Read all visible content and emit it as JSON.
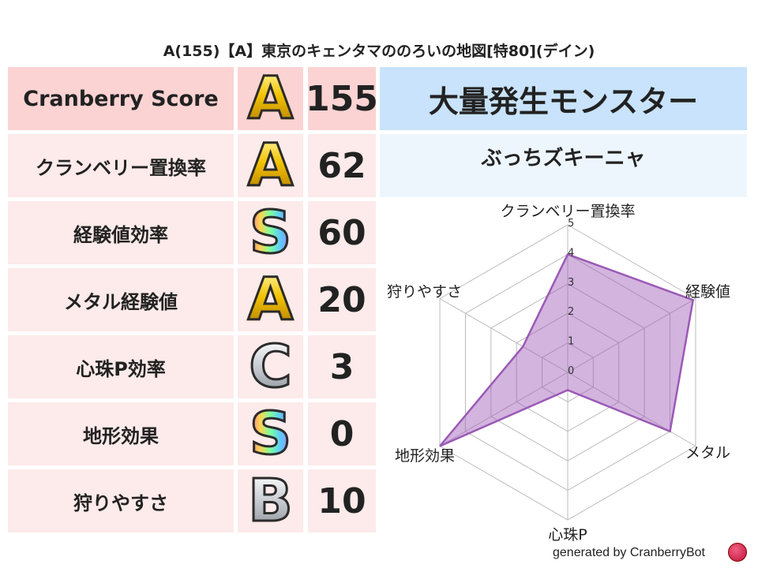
{
  "title": "A(155)【A】東京のキェンタマののろいの地図[特80](デイン)",
  "rows": [
    {
      "label": "Cranberry Score",
      "grade": "A",
      "score": "155"
    },
    {
      "label": "クランベリー置換率",
      "grade": "A",
      "score": "62"
    },
    {
      "label": "経験値効率",
      "grade": "S",
      "score": "60"
    },
    {
      "label": "メタル経験値",
      "grade": "A",
      "score": "20"
    },
    {
      "label": "心珠P効率",
      "grade": "C",
      "score": "3"
    },
    {
      "label": "地形効果",
      "grade": "S",
      "score": "0"
    },
    {
      "label": "狩りやすさ",
      "grade": "B",
      "score": "10"
    }
  ],
  "monster": {
    "header": "大量発生モンスター",
    "name": "ぶっちズキーニャ"
  },
  "chart_data": {
    "type": "radar",
    "axes": [
      "クランベリー置換率",
      "経験値",
      "メタル",
      "心珠P",
      "地形効果",
      "狩りやすさ"
    ],
    "values": [
      4.0,
      4.9,
      4.0,
      0.6,
      5.0,
      1.75
    ],
    "ticks": [
      "0",
      "1",
      "2",
      "3",
      "4",
      "5"
    ],
    "range": [
      0,
      5
    ],
    "color": "#9b59b6"
  },
  "footer": {
    "text": "generated by CranberryBot"
  },
  "colors": {
    "header_row": "#fcd3d3",
    "row": "#fdeaea",
    "monster_header": "#c8e3fb",
    "monster_name": "#eef6fd"
  }
}
